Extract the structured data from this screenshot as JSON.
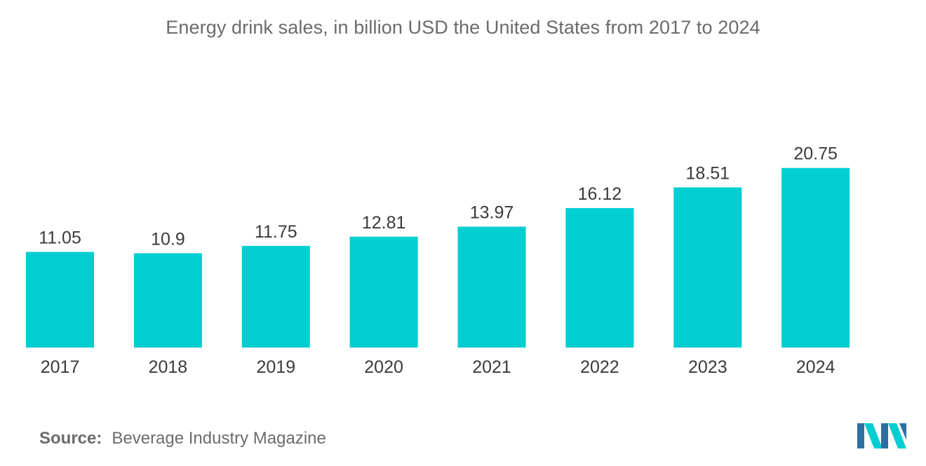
{
  "chart_data": {
    "type": "bar",
    "title": "Energy drink sales, in billion USD the United States from 2017 to 2024",
    "categories": [
      "2017",
      "2018",
      "2019",
      "2020",
      "2021",
      "2022",
      "2023",
      "2024"
    ],
    "values": [
      11.05,
      10.9,
      11.75,
      12.81,
      13.97,
      16.12,
      18.51,
      20.75
    ],
    "value_labels": [
      "11.05",
      "10.9",
      "11.75",
      "12.81",
      "13.97",
      "16.12",
      "18.51",
      "20.75"
    ],
    "xlabel": "",
    "ylabel": "",
    "ylim": [
      0,
      24
    ],
    "grid": false,
    "legend": "none",
    "bar_color": "#00CED1"
  },
  "source": {
    "label": "Source:",
    "text": "Beverage Industry Magazine"
  },
  "logo": {
    "icon": "mordor-intelligence-logo-icon",
    "colors": [
      "#2E6FA3",
      "#00CED1"
    ]
  }
}
